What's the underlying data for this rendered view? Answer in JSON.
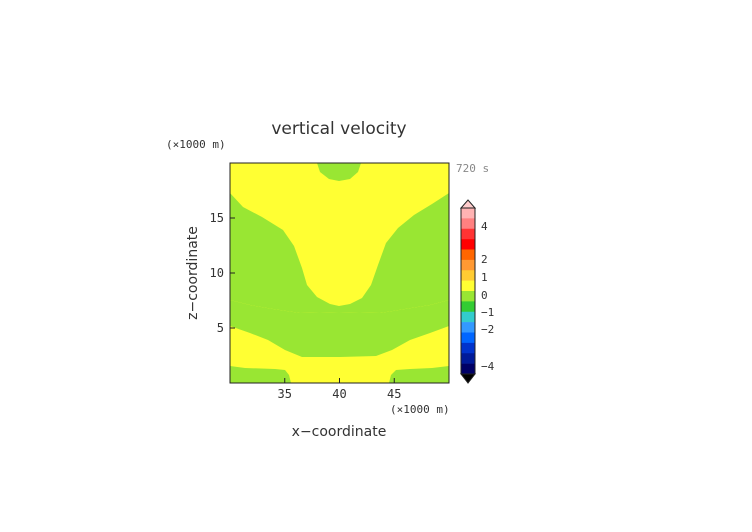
{
  "chart_data": {
    "type": "heatmap",
    "title": "vertical velocity",
    "time_label": "720 s",
    "xlabel": "x−coordinate",
    "ylabel": "z−coordinate",
    "x_unit": "(×1000 m)",
    "y_unit": "(×1000 m)",
    "xlim": [
      30,
      50
    ],
    "ylim": [
      0,
      20
    ],
    "x_ticks": [
      35,
      40,
      45
    ],
    "y_ticks": [
      5,
      10,
      15
    ],
    "fields": [
      {
        "name": "yellow",
        "value_range": [
          0,
          0.5
        ],
        "color": "#ffff33"
      },
      {
        "name": "green",
        "value_range": [
          -0.5,
          0
        ],
        "color": "#99e633"
      }
    ],
    "colorbar": {
      "tick_labels": [
        "4",
        "2",
        "1",
        "0",
        "−1",
        "−2",
        "−4"
      ],
      "tick_values": [
        4,
        2,
        1,
        0,
        -1,
        -2,
        -4
      ],
      "colors": [
        "#ffb3b3",
        "#ff8080",
        "#ff3333",
        "#ff0000",
        "#ff6600",
        "#ff9933",
        "#ffcc33",
        "#ffff33",
        "#99e633",
        "#33cc33",
        "#33cccc",
        "#3399ff",
        "#0066ff",
        "#0033cc",
        "#001a99",
        "#000066"
      ],
      "top_triangle": "#ffcccc",
      "bottom_triangle": "#000000"
    }
  }
}
